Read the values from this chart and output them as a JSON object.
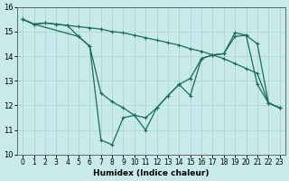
{
  "xlabel": "Humidex (Indice chaleur)",
  "background_color": "#c8eaea",
  "line_color": "#1a6b5a",
  "grid_color": "#b0d8d8",
  "xlim": [
    -0.5,
    23.5
  ],
  "ylim": [
    10,
    16
  ],
  "xticks": [
    0,
    1,
    2,
    3,
    4,
    5,
    6,
    7,
    8,
    9,
    10,
    11,
    12,
    13,
    14,
    15,
    16,
    17,
    18,
    19,
    20,
    21,
    22,
    23
  ],
  "yticks": [
    10,
    11,
    12,
    13,
    14,
    15,
    16
  ],
  "series1": [
    15.5,
    15.3,
    15.35,
    15.3,
    15.25,
    15.2,
    15.15,
    15.1,
    15.0,
    14.95,
    14.85,
    14.75,
    14.65,
    14.55,
    14.45,
    14.3,
    14.2,
    14.05,
    13.9,
    13.7,
    13.5,
    13.3,
    12.1,
    11.9
  ],
  "series2": [
    15.5,
    15.3,
    15.35,
    15.3,
    15.25,
    14.8,
    14.4,
    12.5,
    12.15,
    11.9,
    11.6,
    11.5,
    11.9,
    12.4,
    12.85,
    13.1,
    13.9,
    14.05,
    14.1,
    14.8,
    14.85,
    14.5,
    12.1,
    11.9
  ],
  "series3_x": [
    0,
    1,
    5,
    6,
    7,
    8,
    9,
    10,
    11,
    12,
    13,
    14,
    15,
    16,
    17,
    18,
    19,
    20,
    21,
    22,
    23
  ],
  "series3_y": [
    15.5,
    15.3,
    14.8,
    14.4,
    10.6,
    10.4,
    11.5,
    11.6,
    11.0,
    11.9,
    12.4,
    12.85,
    12.4,
    13.9,
    14.05,
    14.1,
    14.95,
    14.85,
    12.85,
    12.1,
    11.9
  ]
}
